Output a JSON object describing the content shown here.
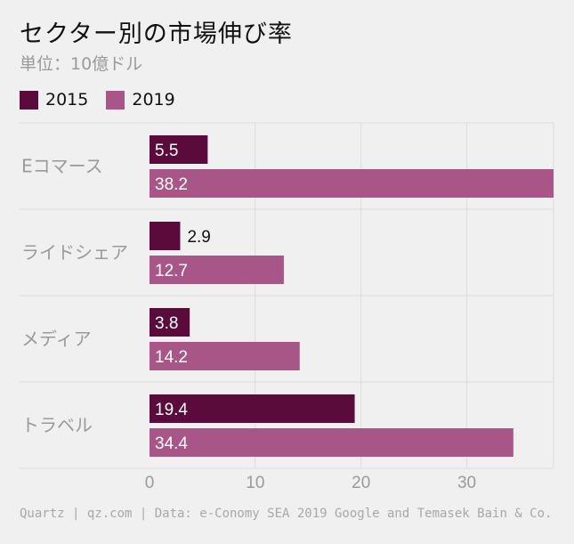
{
  "header": {
    "title": "セクター別の市場伸び率",
    "subtitle": "単位：10億ドル"
  },
  "legend": [
    {
      "label": "2015",
      "color": "#5b0a3c"
    },
    {
      "label": "2019",
      "color": "#a85587"
    }
  ],
  "chart_data": {
    "type": "bar",
    "orientation": "horizontal",
    "title": "セクター別の市場伸び率",
    "subtitle": "単位：10億ドル",
    "categories": [
      "Eコマース",
      "ライドシェア",
      "メディア",
      "トラベル"
    ],
    "series": [
      {
        "name": "2015",
        "color": "#5b0a3c",
        "values": [
          5.5,
          2.9,
          3.8,
          19.4
        ]
      },
      {
        "name": "2019",
        "color": "#a85587",
        "values": [
          38.2,
          12.7,
          14.2,
          34.4
        ]
      }
    ],
    "value_labels": [
      [
        "5.5",
        "2.9",
        "3.8",
        "19.4"
      ],
      [
        "38.2",
        "12.7",
        "14.2",
        "34.4"
      ]
    ],
    "xticks": [
      0,
      10,
      20,
      30
    ],
    "xtick_labels": [
      "0",
      "10",
      "20",
      "30"
    ],
    "xlim": [
      0,
      38.2
    ],
    "grid": true,
    "legend_position": "top-left"
  },
  "footer": {
    "source": "Quartz | qz.com | Data: e-Conomy SEA 2019 Google and Temasek Bain & Co."
  }
}
